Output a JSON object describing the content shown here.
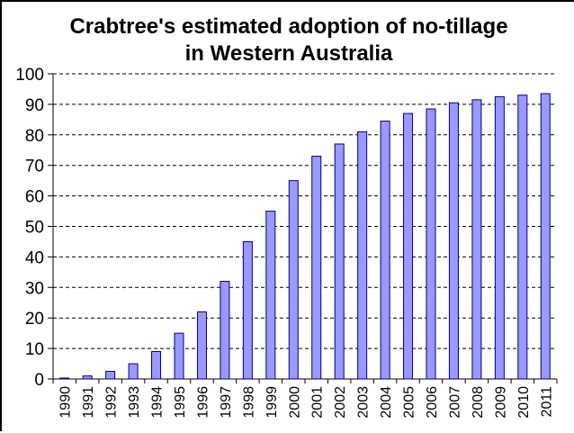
{
  "chart_data": {
    "type": "bar",
    "title_lines": [
      "Crabtree's estimated adoption of no-tillage",
      "in Western Australia"
    ],
    "xlabel": "",
    "ylabel": "",
    "ylim": [
      0,
      100
    ],
    "y_ticks": [
      0,
      10,
      20,
      30,
      40,
      50,
      60,
      70,
      80,
      90,
      100
    ],
    "grid": "horizontal-dashed",
    "legend": "none",
    "categories": [
      "1990",
      "1991",
      "1992",
      "1993",
      "1994",
      "1995",
      "1996",
      "1997",
      "1998",
      "1999",
      "2000",
      "2001",
      "2002",
      "2003",
      "2004",
      "2005",
      "2006",
      "2007",
      "2008",
      "2009",
      "2010",
      "2011"
    ],
    "values": [
      0.3,
      1,
      2.5,
      5,
      9,
      15,
      22,
      32,
      45,
      55,
      65,
      73,
      77,
      81,
      84.5,
      87,
      88.5,
      90.5,
      91.5,
      92.5,
      93,
      93.5
    ],
    "bar_color": "#9999ff",
    "bar_edge_color": "#000080"
  }
}
